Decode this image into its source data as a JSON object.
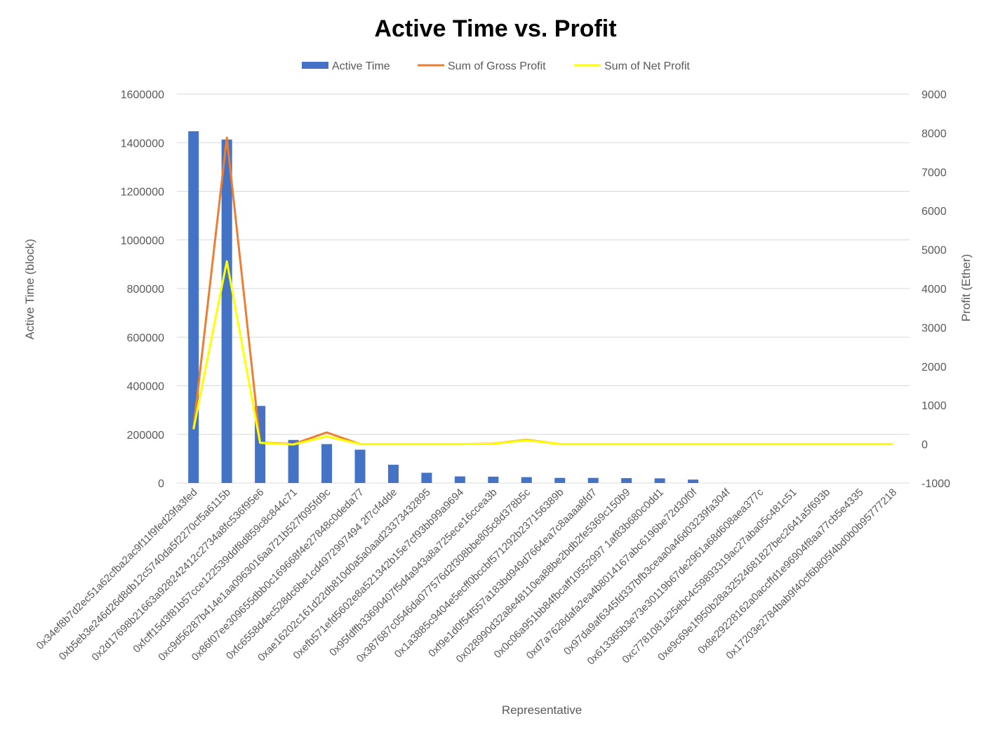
{
  "chart_data": {
    "type": "bar",
    "title": "Active Time vs. Profit",
    "xlabel": "Representative",
    "ylabel": "Active Time (block)",
    "y2label": "Profit (Ether)",
    "ylim": [
      0,
      1600000
    ],
    "y2lim": [
      -1000,
      9000
    ],
    "yticks": [
      "0",
      "200000",
      "400000",
      "600000",
      "800000",
      "1000000",
      "1200000",
      "1400000",
      "1600000"
    ],
    "y2ticks": [
      "-1000",
      "0",
      "1000",
      "2000",
      "3000",
      "4000",
      "5000",
      "6000",
      "7000",
      "8000",
      "9000"
    ],
    "grid": true,
    "legend_position": "top",
    "categories": [
      "0x34ef8b7d2ec51a62cfba2ac9f11f9fed29fa3fed",
      "0xb5eb3e246d26d8db12c5740da5f2270cf5a6115b",
      "0x2d17698b21663a928242412c2734a8fc536f95e6",
      "0xfcff15d3f81b57cce122539ddf8d859c8c844c71",
      "0xc9d56287b414e1aa0963016aa721b527f095fd9c",
      "0x86f07ee309655dbb0c169668f4e27848c0deda77",
      "0xfc6558d4ec528dc6be1cd4972997494 2f7cf4dde",
      "0xae16202c161d22db810d0a5a0aad23373432895",
      "0xefb571efd5602e8a521342b15e7cf93bb99a9694",
      "0x95fdffb33690407f5d4a943a8a725ece16ccea3b",
      "0x387687c0546da077576d2f308bbe805c8d378b5c",
      "0x1a3885c9404e5ecff0bccbf571292b237156389b",
      "0xf9e1d0f54f557a183bd949d7664ea7c8aaaa8fd7",
      "0x028990d32a8e48110ea88be2bdb2fe5369c150b9",
      "0x0c06a951bb84fbcaff10552997 1af83b680c0dd1",
      "0xd7a7628dafa2ea4b8014167abc6196be72d30f0f",
      "0x97da9af6345fd337bfb3ceaa0a46d03239fa304f",
      "0x613365b3e73e30119b67de2961a68d608aea377c",
      "0xc7781081a25ebc4c59893319ac27aba05c481c51",
      "0xe9c69e1f950b28a32524681827bec2641a5f693b",
      "0x8e29228162a0accffd1e96904f8aa77cb5e4335",
      "0x17203e2784bab9f40cf6b805f4bd0b0b95777218"
    ],
    "series": [
      {
        "name": "Active Time",
        "kind": "bar",
        "axis": "primary",
        "color": "#4472C4",
        "values": [
          1447000,
          1413000,
          317000,
          177000,
          160000,
          137000,
          75000,
          42000,
          27000,
          26000,
          24000,
          21000,
          21000,
          20000,
          19000,
          14000,
          0,
          0,
          0,
          0,
          0,
          0
        ]
      },
      {
        "name": "Sum of Gross Profit",
        "kind": "line",
        "axis": "secondary",
        "color": "#ED7D31",
        "values": [
          400,
          7880,
          40,
          0,
          300,
          0,
          0,
          0,
          0,
          10,
          110,
          0,
          0,
          0,
          0,
          0,
          0,
          0,
          0,
          0,
          0,
          0
        ]
      },
      {
        "name": "Sum of Net Profit",
        "kind": "line",
        "axis": "secondary",
        "color": "#FFFF00",
        "values": [
          380,
          4700,
          30,
          -10,
          200,
          0,
          0,
          0,
          0,
          5,
          100,
          0,
          0,
          0,
          0,
          0,
          0,
          0,
          0,
          0,
          0,
          0
        ]
      }
    ]
  }
}
